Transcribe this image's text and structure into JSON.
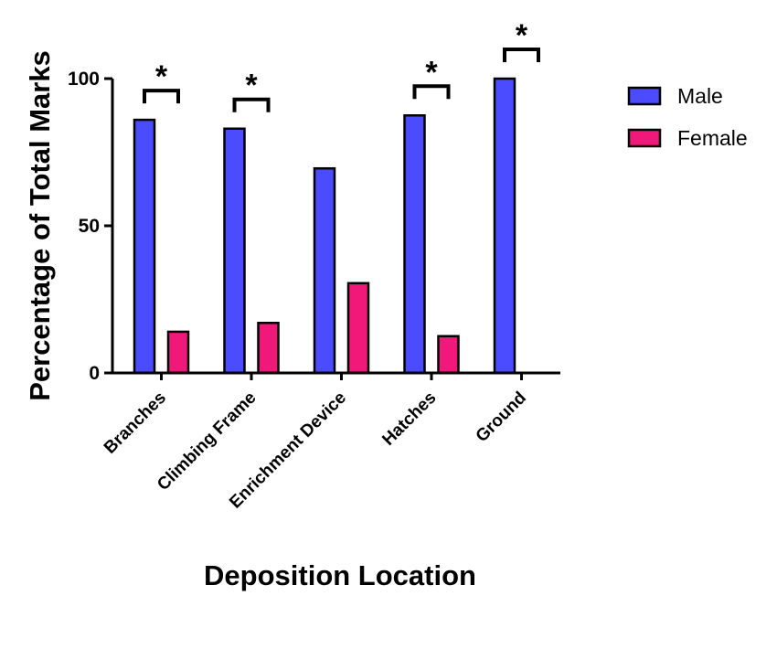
{
  "chart_data": {
    "type": "bar",
    "title": "",
    "xlabel": "Deposition Location",
    "ylabel": "Percentage of Total Marks",
    "ylim": [
      0,
      100
    ],
    "yticks": [
      0,
      50,
      100
    ],
    "categories": [
      "Branches",
      "Climbing Frame",
      "Enrichment Device",
      "Hatches",
      "Ground"
    ],
    "series": [
      {
        "name": "Male",
        "color": "#4B4BFF",
        "values": [
          86,
          83,
          69.5,
          87.5,
          100
        ]
      },
      {
        "name": "Female",
        "color": "#F0197A",
        "values": [
          14,
          17,
          30.5,
          12.5,
          0
        ]
      }
    ],
    "significance": [
      {
        "category": "Branches",
        "symbol": "*"
      },
      {
        "category": "Climbing Frame",
        "symbol": "*"
      },
      {
        "category": "Hatches",
        "symbol": "*"
      },
      {
        "category": "Ground",
        "symbol": "*"
      }
    ],
    "legend_position": "top-right",
    "grid": false
  }
}
